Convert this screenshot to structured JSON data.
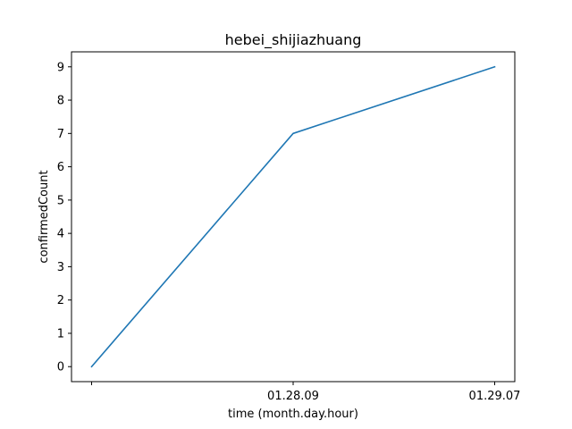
{
  "chart_data": {
    "type": "line",
    "title": "hebei_shijiazhuang",
    "xlabel": "time (month.day.hour)",
    "ylabel": "confirmedCount",
    "categories": [
      "",
      "01.28.09",
      "01.29.07"
    ],
    "series": [
      {
        "values": [
          0,
          7,
          9
        ],
        "color": "#1f77b4"
      }
    ],
    "ylim": [
      -0.45,
      9.45
    ],
    "yticks": [
      0,
      1,
      2,
      3,
      4,
      5,
      6,
      7,
      8,
      9
    ],
    "grid": false,
    "legend": "none"
  }
}
